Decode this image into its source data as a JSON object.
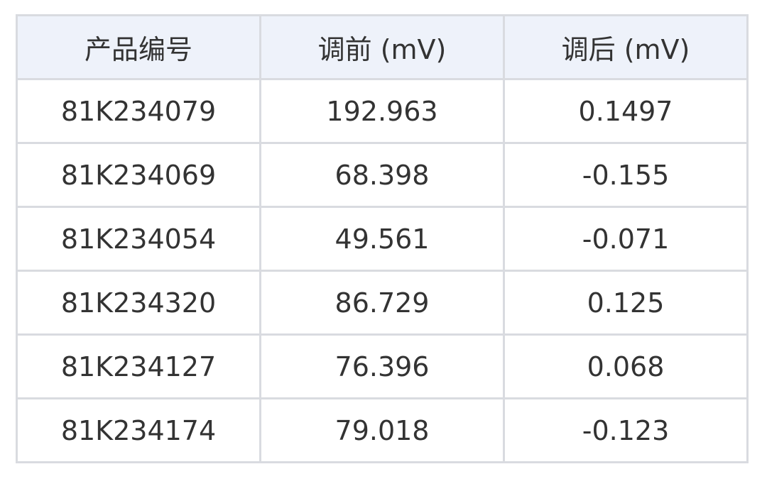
{
  "table": {
    "header": [
      "产品编号",
      "调前 (mV)",
      "调后 (mV)"
    ],
    "rows": [
      [
        "81K234079",
        "192.963",
        "0.1497"
      ],
      [
        "81K234069",
        "68.398",
        "-0.155"
      ],
      [
        "81K234054",
        "49.561",
        "-0.071"
      ],
      [
        "81K234320",
        "86.729",
        "0.125"
      ],
      [
        "81K234127",
        "76.396",
        "0.068"
      ],
      [
        "81K234174",
        "79.018",
        "-0.123"
      ]
    ]
  }
}
